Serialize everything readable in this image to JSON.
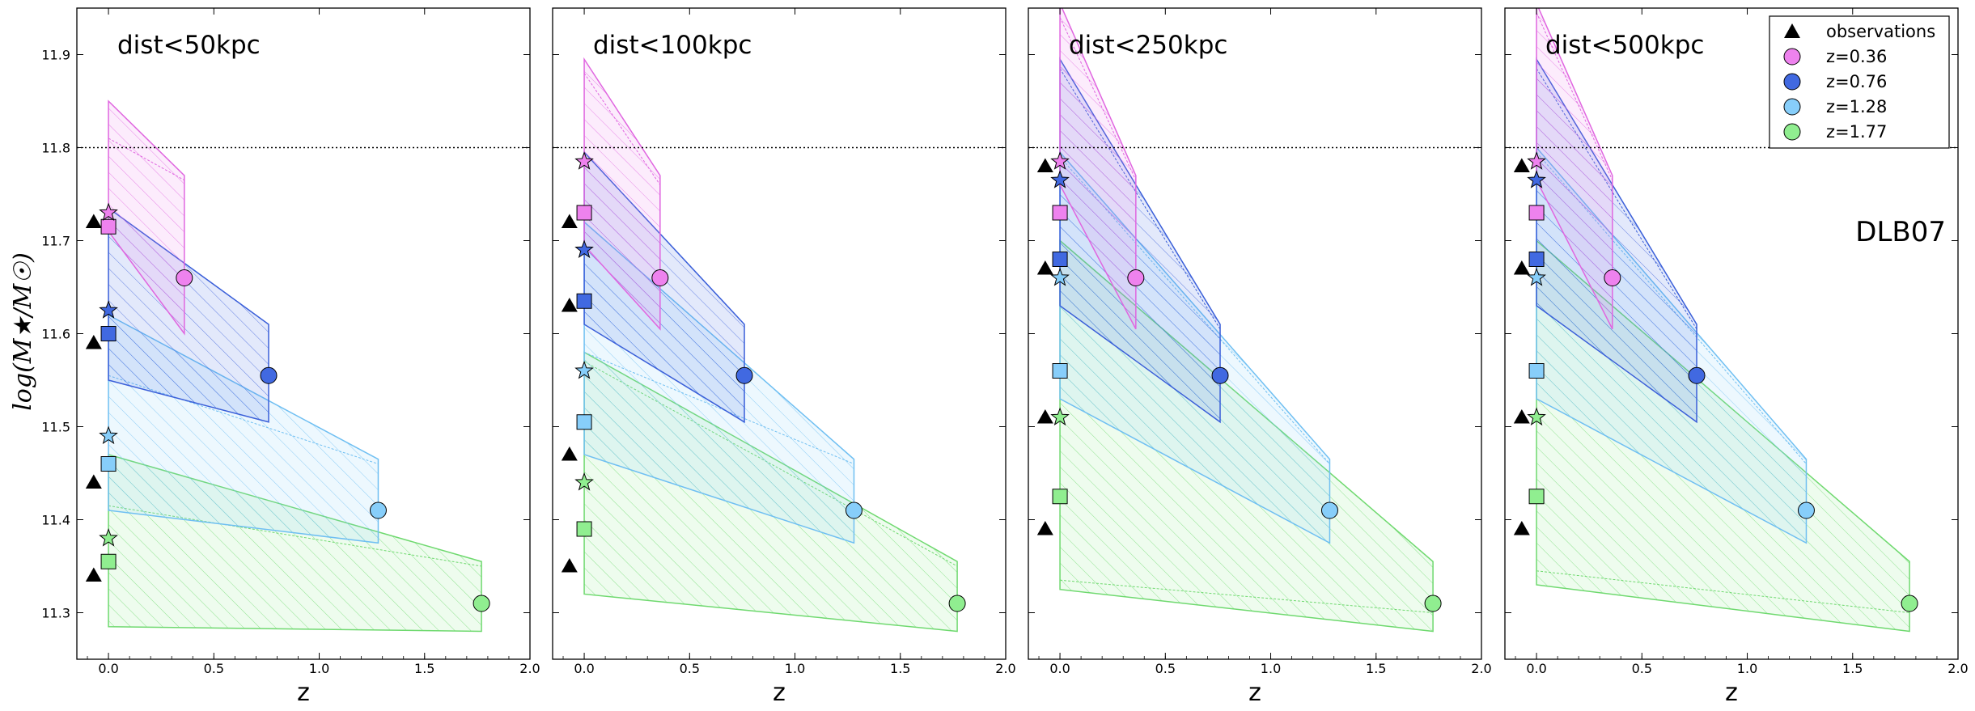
{
  "chart_data": {
    "type": "scatter",
    "ylabel": "log(M★/M☉)",
    "xlabel": "z",
    "xlim": [
      -0.15,
      2.0
    ],
    "ylim": [
      11.25,
      11.95
    ],
    "xticks": [
      "0.0",
      "0.5",
      "1.0",
      "1.5",
      "2.0"
    ],
    "yticks": [
      "11.3",
      "11.4",
      "11.5",
      "11.6",
      "11.7",
      "11.8",
      "11.9"
    ],
    "reference_line": 11.8,
    "model_label": "DLB07",
    "legend": {
      "placement": "top-right of last panel",
      "entries": [
        {
          "label": "observations",
          "marker": "triangle",
          "color": "#000000"
        },
        {
          "label": "z=0.36",
          "marker": "circle",
          "color": "#ee82ee"
        },
        {
          "label": "z=0.76",
          "marker": "circle",
          "color": "#4169e1"
        },
        {
          "label": "z=1.28",
          "marker": "circle",
          "color": "#87cefa"
        },
        {
          "label": "z=1.77",
          "marker": "circle",
          "color": "#90ee90"
        }
      ]
    },
    "series_colors": {
      "z036": {
        "fill": "#ee82ee",
        "edge": "#e066e0"
      },
      "z076": {
        "fill": "#4169e1",
        "edge": "#3a5fd9"
      },
      "z128": {
        "fill": "#87cefa",
        "edge": "#6fbff2"
      },
      "z177": {
        "fill": "#90ee90",
        "edge": "#6fd96f"
      }
    },
    "panels": [
      {
        "title": "dist<50kpc",
        "observations": [
          11.72,
          11.59,
          11.44,
          11.34
        ],
        "stars": {
          "z036": 11.73,
          "z076": 11.625,
          "z128": 11.49,
          "z177": 11.38
        },
        "squares": {
          "z036": 11.715,
          "z076": 11.6,
          "z128": 11.46,
          "z177": 11.355
        },
        "circles": {
          "z036": [
            0.36,
            11.66
          ],
          "z076": [
            0.76,
            11.555
          ],
          "z128": [
            1.28,
            11.41
          ],
          "z177": [
            1.77,
            11.31
          ]
        },
        "bands": {
          "z036": {
            "z": 0.36,
            "upper0": 11.85,
            "lower0": 11.71,
            "upper1": 11.77,
            "lower1": 11.6,
            "mid0": 11.81,
            "mid1": 11.765
          },
          "z076": {
            "z": 0.76,
            "upper0": 11.735,
            "lower0": 11.55,
            "upper1": 11.61,
            "lower1": 11.505,
            "mid0": 11.735,
            "mid1": 11.61
          },
          "z128": {
            "z": 1.28,
            "upper0": 11.62,
            "lower0": 11.41,
            "upper1": 11.465,
            "lower1": 11.375,
            "mid0": 11.555,
            "mid1": 11.46
          },
          "z177": {
            "z": 1.77,
            "upper0": 11.47,
            "lower0": 11.285,
            "upper1": 11.355,
            "lower1": 11.28,
            "mid0": 11.415,
            "mid1": 11.35
          }
        }
      },
      {
        "title": "dist<100kpc",
        "observations": [
          11.72,
          11.63,
          11.47,
          11.35
        ],
        "stars": {
          "z036": 11.785,
          "z076": 11.69,
          "z128": 11.56,
          "z177": 11.44
        },
        "squares": {
          "z036": 11.73,
          "z076": 11.635,
          "z128": 11.505,
          "z177": 11.39
        },
        "circles": {
          "z036": [
            0.36,
            11.66
          ],
          "z076": [
            0.76,
            11.555
          ],
          "z128": [
            1.28,
            11.41
          ],
          "z177": [
            1.77,
            11.31
          ]
        },
        "bands": {
          "z036": {
            "z": 0.36,
            "upper0": 11.895,
            "lower0": 11.695,
            "upper1": 11.77,
            "lower1": 11.605,
            "mid0": 11.88,
            "mid1": 11.76
          },
          "z076": {
            "z": 0.76,
            "upper0": 11.795,
            "lower0": 11.61,
            "upper1": 11.61,
            "lower1": 11.505,
            "mid0": 11.795,
            "mid1": 11.61
          },
          "z128": {
            "z": 1.28,
            "upper0": 11.72,
            "lower0": 11.47,
            "upper1": 11.465,
            "lower1": 11.375,
            "mid0": 11.58,
            "mid1": 11.46
          },
          "z177": {
            "z": 1.77,
            "upper0": 11.58,
            "lower0": 11.32,
            "upper1": 11.355,
            "lower1": 11.28,
            "mid0": 11.57,
            "mid1": 11.35
          }
        }
      },
      {
        "title": "dist<250kpc",
        "observations": [
          11.78,
          11.67,
          11.51,
          11.39
        ],
        "stars": {
          "z036": 11.785,
          "z076": 11.765,
          "z128": 11.66,
          "z177": 11.51
        },
        "squares": {
          "z036": 11.73,
          "z076": 11.68,
          "z128": 11.56,
          "z177": 11.425
        },
        "circles": {
          "z036": [
            0.36,
            11.66
          ],
          "z076": [
            0.76,
            11.555
          ],
          "z128": [
            1.28,
            11.41
          ],
          "z177": [
            1.77,
            11.31
          ]
        },
        "bands": {
          "z036": {
            "z": 0.36,
            "upper0": 11.955,
            "lower0": 11.76,
            "upper1": 11.77,
            "lower1": 11.605,
            "mid0": 11.94,
            "mid1": 11.765
          },
          "z076": {
            "z": 0.76,
            "upper0": 11.895,
            "lower0": 11.63,
            "upper1": 11.61,
            "lower1": 11.505,
            "mid0": 11.885,
            "mid1": 11.605
          },
          "z128": {
            "z": 1.28,
            "upper0": 11.795,
            "lower0": 11.53,
            "upper1": 11.465,
            "lower1": 11.375,
            "mid0": 11.79,
            "mid1": 11.46
          },
          "z177": {
            "z": 1.77,
            "upper0": 11.7,
            "lower0": 11.325,
            "upper1": 11.355,
            "lower1": 11.28,
            "mid0": 11.335,
            "mid1": 11.3
          }
        }
      },
      {
        "title": "dist<500kpc",
        "observations": [
          11.78,
          11.67,
          11.51,
          11.39
        ],
        "stars": {
          "z036": 11.785,
          "z076": 11.765,
          "z128": 11.66,
          "z177": 11.51
        },
        "squares": {
          "z036": 11.73,
          "z076": 11.68,
          "z128": 11.56,
          "z177": 11.425
        },
        "circles": {
          "z036": [
            0.36,
            11.66
          ],
          "z076": [
            0.76,
            11.555
          ],
          "z128": [
            1.28,
            11.41
          ],
          "z177": [
            1.77,
            11.31
          ]
        },
        "bands": {
          "z036": {
            "z": 0.36,
            "upper0": 11.955,
            "lower0": 11.765,
            "upper1": 11.77,
            "lower1": 11.605,
            "mid0": 11.945,
            "mid1": 11.765
          },
          "z076": {
            "z": 0.76,
            "upper0": 11.895,
            "lower0": 11.63,
            "upper1": 11.61,
            "lower1": 11.505,
            "mid0": 11.885,
            "mid1": 11.605
          },
          "z128": {
            "z": 1.28,
            "upper0": 11.8,
            "lower0": 11.53,
            "upper1": 11.465,
            "lower1": 11.375,
            "mid0": 11.795,
            "mid1": 11.46
          },
          "z177": {
            "z": 1.77,
            "upper0": 11.7,
            "lower0": 11.33,
            "upper1": 11.355,
            "lower1": 11.28,
            "mid0": 11.345,
            "mid1": 11.3
          }
        }
      }
    ]
  }
}
